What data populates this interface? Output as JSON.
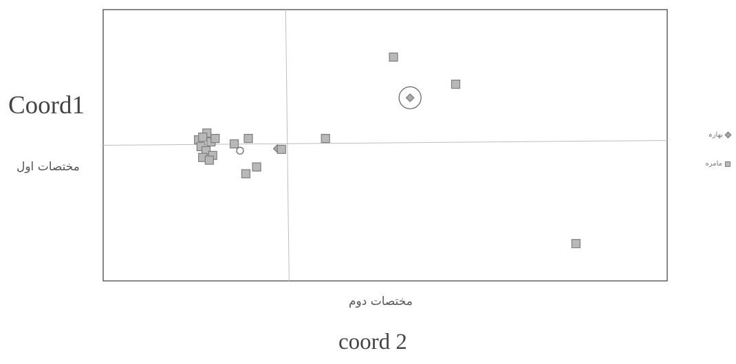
{
  "chart_data": {
    "type": "scatter",
    "title": "",
    "y_axis_labels": {
      "english": "Coord1",
      "persian": "مختصات اول"
    },
    "x_axis_labels": {
      "persian": "مختصات دوم",
      "english": "coord 2"
    },
    "legend_position": "right",
    "grid": false,
    "x_range": [
      -2.2,
      4.6
    ],
    "y_range": [
      -2.0,
      2.0
    ],
    "series": [
      {
        "name": "بهارہ",
        "marker": "diamond",
        "color": "#aaaaaa",
        "points": [
          {
            "x": 1.5,
            "y": 0.7,
            "highlighted": true
          },
          {
            "x": -0.1,
            "y": -0.05,
            "highlighted": false
          }
        ]
      },
      {
        "name": "مامره",
        "marker": "square",
        "color": "#b8b8b8",
        "points": [
          {
            "x": -1.05,
            "y": 0.08
          },
          {
            "x": -0.95,
            "y": 0.18
          },
          {
            "x": -1.0,
            "y": 0.12
          },
          {
            "x": -0.9,
            "y": 0.05
          },
          {
            "x": -0.85,
            "y": 0.1
          },
          {
            "x": -1.02,
            "y": -0.02
          },
          {
            "x": -0.96,
            "y": -0.08
          },
          {
            "x": -0.88,
            "y": -0.15
          },
          {
            "x": -1.0,
            "y": -0.18
          },
          {
            "x": -0.92,
            "y": -0.22
          },
          {
            "x": -0.62,
            "y": 0.02
          },
          {
            "x": -0.45,
            "y": 0.1
          },
          {
            "x": -0.35,
            "y": -0.32
          },
          {
            "x": -0.48,
            "y": -0.42
          },
          {
            "x": -0.05,
            "y": -0.06
          },
          {
            "x": 0.48,
            "y": 0.1
          },
          {
            "x": 1.3,
            "y": 1.3
          },
          {
            "x": 2.05,
            "y": 0.9
          },
          {
            "x": 3.5,
            "y": -1.45
          }
        ]
      }
    ],
    "extra_markers": [
      {
        "type": "circle",
        "x": -0.55,
        "y": -0.08
      }
    ]
  }
}
